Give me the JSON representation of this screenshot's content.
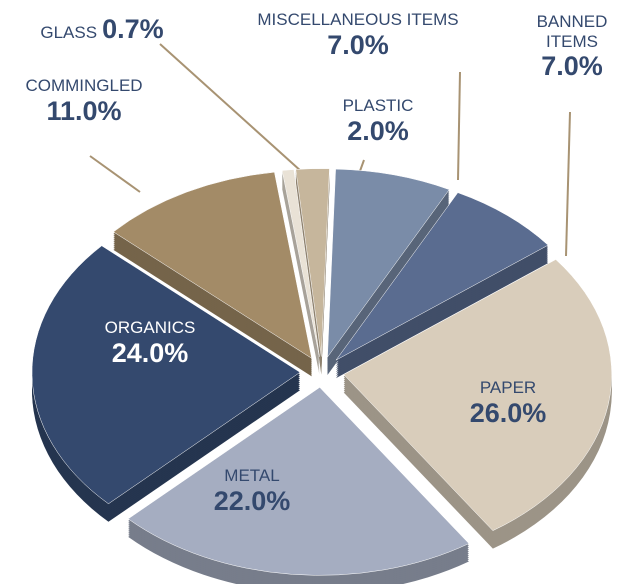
{
  "chart_data": {
    "type": "pie",
    "categories": [
      "GLASS",
      "PLASTIC",
      "MISCELLANEOUS ITEMS",
      "BANNED ITEMS",
      "PAPER",
      "METAL",
      "ORGANICS",
      "COMMINGLED"
    ],
    "values": [
      0.7,
      2.0,
      7.0,
      7.0,
      26.0,
      22.0,
      24.0,
      11.0
    ],
    "value_labels": [
      "0.7%",
      "2.0%",
      "7.0%",
      "7.0%",
      "26.0%",
      "22.0%",
      "24.0%",
      "11.0%"
    ],
    "colors": [
      "#e9e2d6",
      "#c6b69c",
      "#7a8ca8",
      "#5a6c90",
      "#d9cdbb",
      "#a5adc1",
      "#34496e",
      "#a38b67"
    ]
  }
}
